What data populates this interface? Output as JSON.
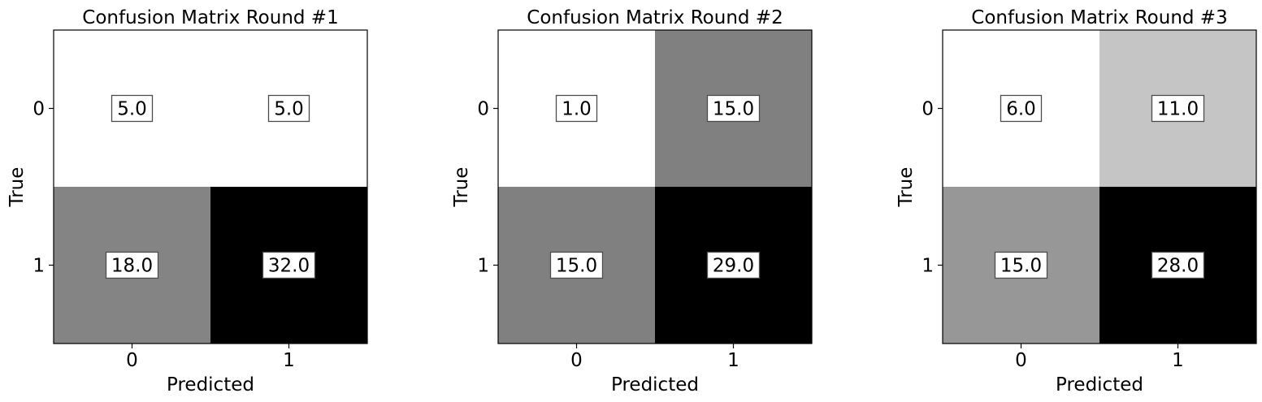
{
  "chart_data": [
    {
      "type": "heatmap",
      "title": "Confusion Matrix Round #1",
      "xlabel": "Predicted",
      "ylabel": "True",
      "x_tick_labels": [
        "0",
        "1"
      ],
      "y_tick_labels": [
        "0",
        "1"
      ],
      "value_labels": [
        [
          "5.0",
          "5.0"
        ],
        [
          "18.0",
          "32.0"
        ]
      ],
      "values": [
        [
          5,
          5
        ],
        [
          18,
          32
        ]
      ],
      "colormap": "gray_r"
    },
    {
      "type": "heatmap",
      "title": "Confusion Matrix Round #2",
      "xlabel": "Predicted",
      "ylabel": "True",
      "x_tick_labels": [
        "0",
        "1"
      ],
      "y_tick_labels": [
        "0",
        "1"
      ],
      "value_labels": [
        [
          "1.0",
          "15.0"
        ],
        [
          "15.0",
          "29.0"
        ]
      ],
      "values": [
        [
          1,
          15
        ],
        [
          15,
          29
        ]
      ],
      "colormap": "gray_r"
    },
    {
      "type": "heatmap",
      "title": "Confusion Matrix Round #3",
      "xlabel": "Predicted",
      "ylabel": "True",
      "x_tick_labels": [
        "0",
        "1"
      ],
      "y_tick_labels": [
        "0",
        "1"
      ],
      "value_labels": [
        [
          "6.0",
          "11.0"
        ],
        [
          "15.0",
          "28.0"
        ]
      ],
      "values": [
        [
          6,
          11
        ],
        [
          15,
          28
        ]
      ],
      "colormap": "gray_r"
    }
  ]
}
